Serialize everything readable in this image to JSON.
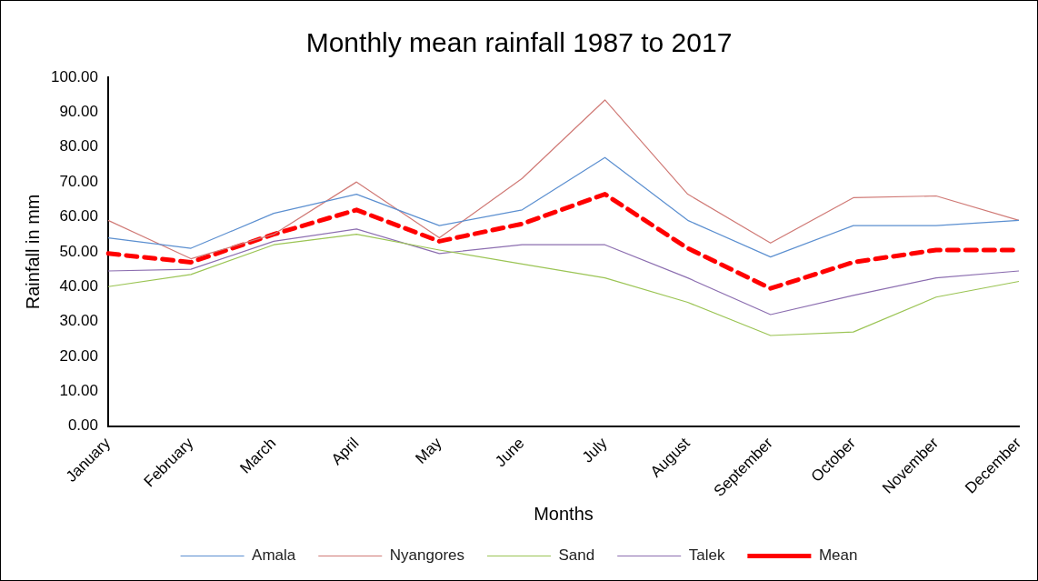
{
  "chart_data": {
    "type": "line",
    "title": "Monthly mean rainfall 1987 to 2017",
    "xlabel": "Months",
    "ylabel": "Rainfall in mm",
    "categories": [
      "January",
      "February",
      "March",
      "April",
      "May",
      "June",
      "July",
      "August",
      "September",
      "October",
      "November",
      "December"
    ],
    "series": [
      {
        "name": "Amala",
        "color": "#5b8fd0",
        "values": [
          54,
          51,
          61,
          66.5,
          57.5,
          62,
          77,
          59,
          48.5,
          57.5,
          57.5,
          59
        ]
      },
      {
        "name": "Nyangores",
        "color": "#d07a76",
        "values": [
          59,
          48,
          55,
          70,
          54,
          71,
          93.5,
          66.5,
          52.5,
          65.5,
          66,
          59
        ]
      },
      {
        "name": "Sand",
        "color": "#9bc454",
        "values": [
          40,
          43.5,
          52,
          55,
          50.5,
          46.5,
          42.5,
          35.5,
          26,
          27,
          37,
          41.5
        ]
      },
      {
        "name": "Talek",
        "color": "#8c6eb0",
        "values": [
          44.5,
          45,
          53,
          56.5,
          49.5,
          52,
          52,
          42.5,
          32,
          37.5,
          42.5,
          44.5
        ]
      },
      {
        "name": "Mean",
        "color": "#ff0000",
        "line_style": "dashed",
        "values": [
          49.5,
          47,
          55,
          62,
          53,
          58,
          66.5,
          51,
          39.5,
          47,
          50.5,
          50.5
        ]
      }
    ],
    "ylim": [
      0,
      100
    ],
    "yticks": [
      {
        "value": 0,
        "label": "0.00"
      },
      {
        "value": 10,
        "label": "10.00"
      },
      {
        "value": 20,
        "label": "20.00"
      },
      {
        "value": 30,
        "label": "30.00"
      },
      {
        "value": 40,
        "label": "40.00"
      },
      {
        "value": 50,
        "label": "50.00"
      },
      {
        "value": 60,
        "label": "60.00"
      },
      {
        "value": 70,
        "label": "70.00"
      },
      {
        "value": 80,
        "label": "80.00"
      },
      {
        "value": 90,
        "label": "90.00"
      },
      {
        "value": 100,
        "label": "100.00"
      }
    ],
    "grid": false,
    "legend": "bottom",
    "marker": "none"
  }
}
